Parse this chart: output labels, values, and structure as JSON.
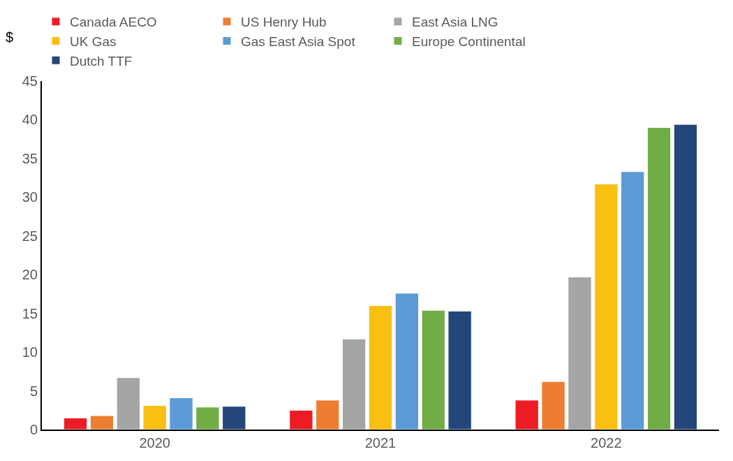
{
  "chart_data": {
    "type": "bar",
    "ylabel": "$",
    "categories": [
      "2020",
      "2021",
      "2022"
    ],
    "series": [
      {
        "name": "Canada AECO",
        "color": "#ed1c24",
        "values": [
          1.5,
          2.5,
          3.8
        ]
      },
      {
        "name": "US Henry Hub",
        "color": "#ed7d31",
        "values": [
          1.8,
          3.8,
          6.2
        ]
      },
      {
        "name": "East Asia LNG",
        "color": "#a5a5a5",
        "values": [
          6.7,
          11.7,
          19.7
        ]
      },
      {
        "name": "UK Gas",
        "color": "#f9bf12",
        "values": [
          3.1,
          16.0,
          31.7
        ]
      },
      {
        "name": "Gas East Asia Spot",
        "color": "#5b9bd5",
        "values": [
          4.1,
          17.6,
          33.3
        ]
      },
      {
        "name": "Europe Continental",
        "color": "#70ad47",
        "values": [
          2.9,
          15.4,
          39.0
        ]
      },
      {
        "name": "Dutch TTF",
        "color": "#244679",
        "values": [
          3.0,
          15.3,
          39.4
        ]
      }
    ],
    "ylim": [
      0,
      45
    ],
    "yticks": [
      0,
      5,
      10,
      15,
      20,
      25,
      30,
      35,
      40,
      45
    ],
    "legend": "top"
  }
}
